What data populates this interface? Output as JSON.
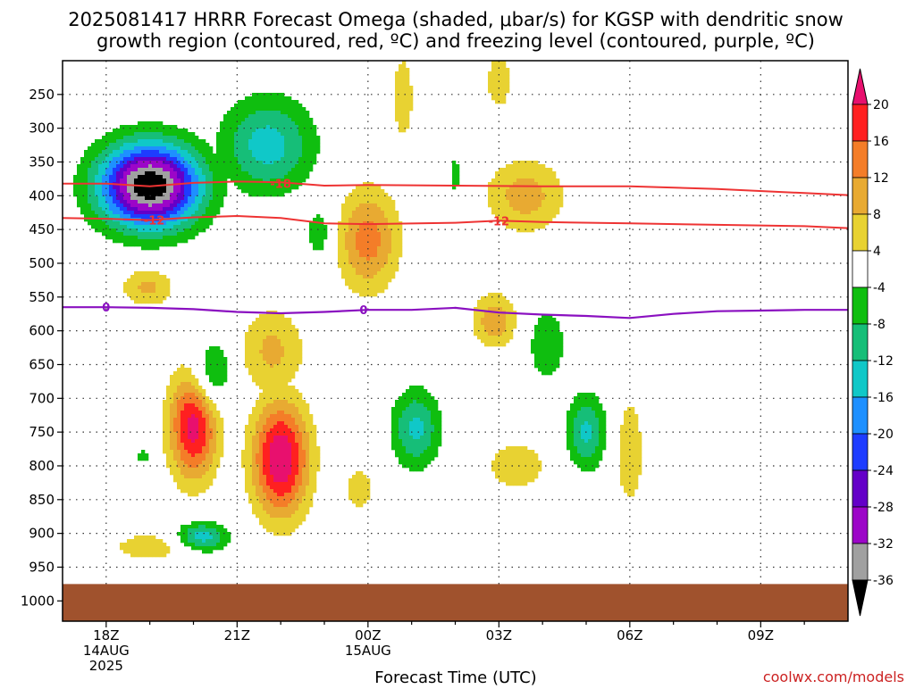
{
  "chart_data": {
    "type": "heatmap",
    "title_line1": "2025081417 HRRR Forecast Omega (shaded, μbar/s) for KGSP with dendritic snow",
    "title_line2": "growth region (contoured, red, ºC) and freezing level (contoured, purple, ºC)",
    "xlabel": "Forecast Time (UTC)",
    "credit": "coolwx.com/models",
    "x_ticks": [
      {
        "h": 0,
        "label": "18Z",
        "sub1": "14AUG",
        "sub2": "2025"
      },
      {
        "h": 3,
        "label": "21Z",
        "sub1": "",
        "sub2": ""
      },
      {
        "h": 6,
        "label": "00Z",
        "sub1": "15AUG",
        "sub2": ""
      },
      {
        "h": 9,
        "label": "03Z",
        "sub1": "",
        "sub2": ""
      },
      {
        "h": 12,
        "label": "06Z",
        "sub1": "",
        "sub2": ""
      },
      {
        "h": 15,
        "label": "09Z",
        "sub1": "",
        "sub2": ""
      }
    ],
    "x_range_hours": [
      -1,
      17
    ],
    "y_ticks": [
      250,
      300,
      350,
      400,
      450,
      500,
      550,
      600,
      650,
      700,
      750,
      800,
      850,
      900,
      950,
      1000
    ],
    "y_range_hpa": [
      200,
      1030
    ],
    "ground_top_hpa": 975,
    "ground_color": "#a0522d",
    "colorbar": {
      "labels": [
        "20",
        "16",
        "12",
        "8",
        "4",
        "-4",
        "-8",
        "-12",
        "-16",
        "-20",
        "-24",
        "-28",
        "-32",
        "-36"
      ],
      "colors": [
        "#ff2020",
        "#f47d28",
        "#e8aa32",
        "#e8d232",
        "#ffffff",
        "#0fbe0f",
        "#16be78",
        "#10c8c8",
        "#1e90ff",
        "#1e3cff",
        "#6400c8",
        "#9c06c8",
        "#a0a0a0"
      ],
      "top_arrow_color": "#e8106e",
      "bottom_arrow_color": "#000000"
    },
    "dendritic_contours": [
      {
        "level": "-18",
        "color": "#ee3333",
        "points": [
          [
            -1,
            382
          ],
          [
            0,
            382
          ],
          [
            1,
            386
          ],
          [
            2,
            381
          ],
          [
            3,
            379
          ],
          [
            4,
            380
          ],
          [
            5,
            385
          ],
          [
            6,
            384
          ],
          [
            8,
            385
          ],
          [
            10,
            386
          ],
          [
            12,
            386
          ],
          [
            14,
            390
          ],
          [
            16,
            396
          ],
          [
            17,
            399
          ]
        ]
      },
      {
        "level": "-12",
        "color": "#ee3333",
        "points": [
          [
            -1,
            433
          ],
          [
            0,
            434
          ],
          [
            1,
            436
          ],
          [
            2,
            432
          ],
          [
            3,
            430
          ],
          [
            4,
            433
          ],
          [
            5,
            441
          ],
          [
            6,
            442
          ],
          [
            8,
            440
          ],
          [
            9,
            437
          ],
          [
            10,
            439
          ],
          [
            12,
            441
          ],
          [
            14,
            443
          ],
          [
            16,
            445
          ],
          [
            17,
            448
          ]
        ]
      }
    ],
    "freezing_level": {
      "level": "0",
      "color": "#8a10c0",
      "points": [
        [
          -1,
          565
        ],
        [
          0,
          565
        ],
        [
          1,
          566
        ],
        [
          2,
          568
        ],
        [
          3,
          572
        ],
        [
          4,
          574
        ],
        [
          5,
          572
        ],
        [
          6,
          569
        ],
        [
          7,
          569
        ],
        [
          8,
          566
        ],
        [
          9,
          573
        ],
        [
          10,
          576
        ],
        [
          11,
          578
        ],
        [
          12,
          581
        ],
        [
          13,
          575
        ],
        [
          14,
          571
        ],
        [
          15,
          570
        ],
        [
          16,
          569
        ],
        [
          17,
          569
        ]
      ]
    },
    "contour_labels": [
      {
        "text": "-18",
        "h": 4.0,
        "p": 382,
        "color": "#ee3333"
      },
      {
        "text": "-12",
        "h": 1.1,
        "p": 436,
        "color": "#ee3333"
      },
      {
        "text": "-12",
        "h": 9.0,
        "p": 437,
        "color": "#ee3333"
      },
      {
        "text": "0",
        "h": 0.0,
        "p": 565,
        "color": "#8a10c0"
      },
      {
        "text": "0",
        "h": 5.9,
        "p": 569,
        "color": "#8a10c0"
      }
    ],
    "omega_features": [
      {
        "sign": "up",
        "h": 1.0,
        "p": 385,
        "rh": 1.15,
        "rp": 62,
        "peak": -40
      },
      {
        "sign": "up",
        "h": 3.7,
        "p": 325,
        "rh": 1.05,
        "rp": 70,
        "peak": -14
      },
      {
        "sign": "up",
        "h": 2.4,
        "p": 665,
        "rh": 0.45,
        "rp": 50,
        "peak": -11
      },
      {
        "sign": "up",
        "h": 2.2,
        "p": 905,
        "rh": 0.6,
        "rp": 22,
        "peak": -14
      },
      {
        "sign": "up",
        "h": 0.85,
        "p": 785,
        "rh": 0.2,
        "rp": 10,
        "peak": -7
      },
      {
        "sign": "up",
        "h": 4.9,
        "p": 455,
        "rh": 0.35,
        "rp": 45,
        "peak": -7
      },
      {
        "sign": "up",
        "h": 7.1,
        "p": 745,
        "rh": 0.55,
        "rp": 58,
        "peak": -13
      },
      {
        "sign": "up",
        "h": 8.0,
        "p": 370,
        "rh": 0.15,
        "rp": 35,
        "peak": -6
      },
      {
        "sign": "up",
        "h": 10.1,
        "p": 620,
        "rh": 0.42,
        "rp": 55,
        "peak": -8
      },
      {
        "sign": "up",
        "h": 11.0,
        "p": 750,
        "rh": 0.45,
        "rp": 55,
        "peak": -13
      },
      {
        "sign": "down",
        "h": 0.95,
        "p": 535,
        "rh": 0.6,
        "rp": 30,
        "peak": 9
      },
      {
        "sign": "down",
        "h": 2.0,
        "p": 740,
        "rh": 0.55,
        "rp": 80,
        "peak": 22
      },
      {
        "sign": "down",
        "h": 4.0,
        "p": 790,
        "rh": 0.65,
        "rp": 85,
        "peak": 24
      },
      {
        "sign": "down",
        "h": 3.8,
        "p": 630,
        "rh": 0.75,
        "rp": 65,
        "peak": 9
      },
      {
        "sign": "down",
        "h": 6.0,
        "p": 465,
        "rh": 0.7,
        "rp": 75,
        "peak": 14
      },
      {
        "sign": "down",
        "h": 5.8,
        "p": 835,
        "rh": 0.3,
        "rp": 30,
        "peak": 8
      },
      {
        "sign": "down",
        "h": 8.9,
        "p": 585,
        "rh": 0.5,
        "rp": 40,
        "peak": 11
      },
      {
        "sign": "down",
        "h": 9.6,
        "p": 400,
        "rh": 0.9,
        "rp": 55,
        "peak": 10
      },
      {
        "sign": "down",
        "h": 9.4,
        "p": 800,
        "rh": 0.75,
        "rp": 40,
        "peak": 7
      },
      {
        "sign": "down",
        "h": 12.0,
        "p": 780,
        "rh": 0.35,
        "rp": 90,
        "peak": 7
      },
      {
        "sign": "down",
        "h": 1.0,
        "p": 920,
        "rh": 0.9,
        "rp": 22,
        "peak": 7
      },
      {
        "sign": "down",
        "h": 6.8,
        "p": 255,
        "rh": 0.35,
        "rp": 95,
        "peak": 5.5
      },
      {
        "sign": "down",
        "h": 9.0,
        "p": 230,
        "rh": 0.5,
        "rp": 75,
        "peak": 5
      }
    ]
  }
}
